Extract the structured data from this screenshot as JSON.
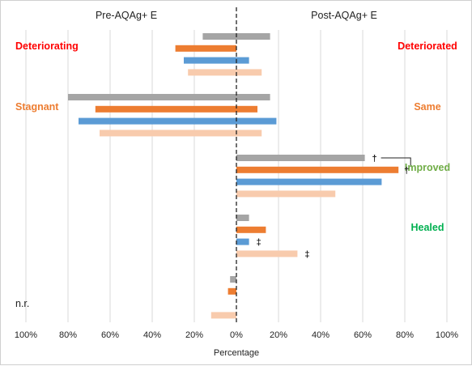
{
  "chart_data": {
    "type": "bar",
    "orientation": "horizontal-diverging",
    "headers": {
      "left": "Pre-AQAg+ E",
      "right": "Post-AQAg+ E"
    },
    "xlabel": "Percentage",
    "xlim": [
      -100,
      100
    ],
    "tick_labels": [
      "100%",
      "80%",
      "60%",
      "40%",
      "20%",
      "0%",
      "20%",
      "40%",
      "60%",
      "80%",
      "100%"
    ],
    "grid": true,
    "group_labels_left": [
      {
        "text": "Deteriorating",
        "color": "#ff0000",
        "group": 0
      },
      {
        "text": "Stagnant",
        "color": "#ed7d31",
        "group": 1
      },
      {
        "text": "n.r.",
        "color": "#222222",
        "group": 4
      }
    ],
    "group_labels_right": [
      {
        "text": "Deteriorated",
        "color": "#ff0000",
        "group": 0
      },
      {
        "text": "Same",
        "color": "#ed7d31",
        "group": 1
      },
      {
        "text": "Improved",
        "color": "#70ad47",
        "group": 2
      },
      {
        "text": "Healed",
        "color": "#00b050",
        "group": 3
      }
    ],
    "series_colors": [
      "#a5a5a5",
      "#ed7d31",
      "#5b9bd5",
      "#f8cbad"
    ],
    "groups": [
      {
        "bars": [
          {
            "pre": 16,
            "post": 16
          },
          {
            "pre": 29,
            "post": 0
          },
          {
            "pre": 25,
            "post": 6
          },
          {
            "pre": 23,
            "post": 12
          }
        ]
      },
      {
        "bars": [
          {
            "pre": 80,
            "post": 16
          },
          {
            "pre": 67,
            "post": 10
          },
          {
            "pre": 75,
            "post": 19
          },
          {
            "pre": 65,
            "post": 12
          }
        ]
      },
      {
        "bars": [
          {
            "pre": 0,
            "post": 61
          },
          {
            "pre": 0,
            "post": 77
          },
          {
            "pre": 0,
            "post": 69
          },
          {
            "pre": 0,
            "post": 47
          }
        ]
      },
      {
        "bars": [
          {
            "pre": 0,
            "post": 6
          },
          {
            "pre": 0,
            "post": 14
          },
          {
            "pre": 0,
            "post": 6
          },
          {
            "pre": 0,
            "post": 29
          }
        ]
      },
      {
        "bars": [
          {
            "pre": 3,
            "post": 0
          },
          {
            "pre": 4,
            "post": 0
          },
          {
            "pre": 0,
            "post": 0
          },
          {
            "pre": 12,
            "post": 0
          }
        ]
      }
    ],
    "annotations": [
      {
        "symbol": "†",
        "group": 2,
        "bar": 0
      },
      {
        "symbol": "†",
        "group": 2,
        "bar": 1
      },
      {
        "symbol": "‡",
        "group": 3,
        "bar": 2
      },
      {
        "symbol": "‡",
        "group": 3,
        "bar": 3
      }
    ]
  }
}
